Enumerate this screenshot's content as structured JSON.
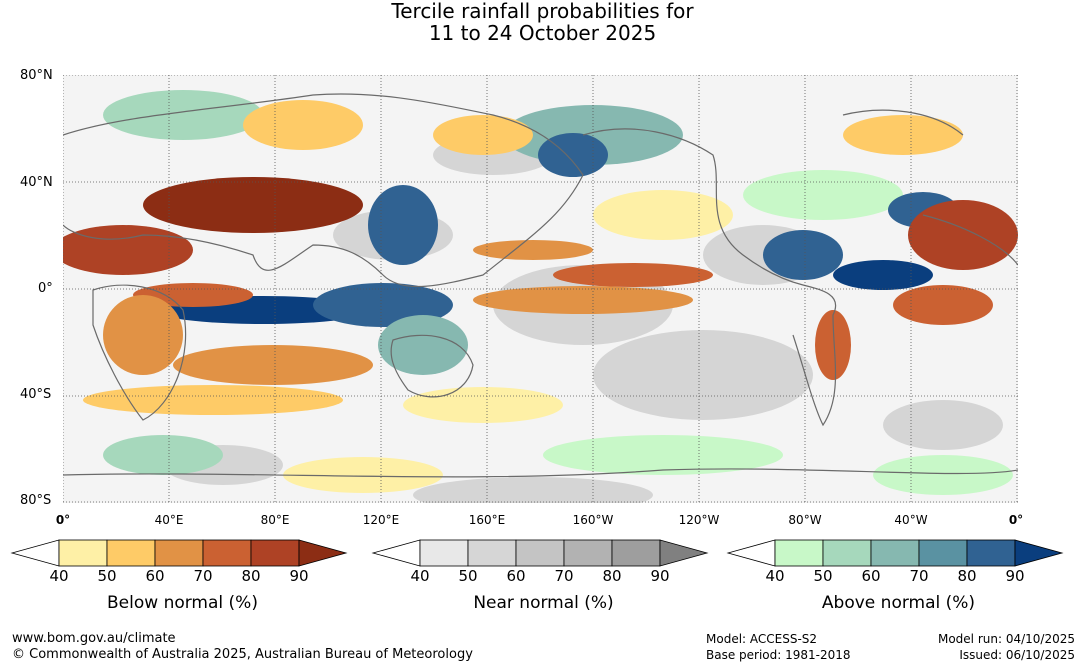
{
  "title": {
    "line1": "Tercile rainfall probabilities for",
    "line2": "11 to 24 October 2025"
  },
  "map": {
    "lat_labels": [
      "80°N",
      "40°N",
      "0°",
      "40°S",
      "80°S"
    ],
    "lon_labels": [
      "0°",
      "40°E",
      "80°E",
      "120°E",
      "160°E",
      "160°W",
      "120°W",
      "80°W",
      "40°W",
      "0°"
    ]
  },
  "colorbars": [
    {
      "title": "Below normal (%)",
      "ticks": [
        "40",
        "50",
        "60",
        "70",
        "80",
        "90"
      ],
      "colors": [
        "#fef0a6",
        "#fecb67",
        "#e19245",
        "#cb6132",
        "#ae4225",
        "#8c2d14"
      ]
    },
    {
      "title": "Near normal (%)",
      "ticks": [
        "40",
        "50",
        "60",
        "70",
        "80",
        "90"
      ],
      "colors": [
        "#e8e8e8",
        "#d6d6d6",
        "#c4c4c4",
        "#b2b2b2",
        "#9e9e9e",
        "#808080"
      ]
    },
    {
      "title": "Above normal (%)",
      "ticks": [
        "40",
        "50",
        "60",
        "70",
        "80",
        "90"
      ],
      "colors": [
        "#c8f8c8",
        "#a6d8bc",
        "#86b8b0",
        "#5a92a2",
        "#306292",
        "#0a3e7e"
      ]
    }
  ],
  "footer": {
    "site": "www.bom.gov.au/climate",
    "copyright": "© Commonwealth of Australia 2025, Australian Bureau of Meteorology",
    "model": "Model: ACCESS-S2",
    "base_period": "Base period: 1981-2018",
    "model_run": "Model run: 04/10/2025",
    "issued": "Issued: 06/10/2025"
  }
}
